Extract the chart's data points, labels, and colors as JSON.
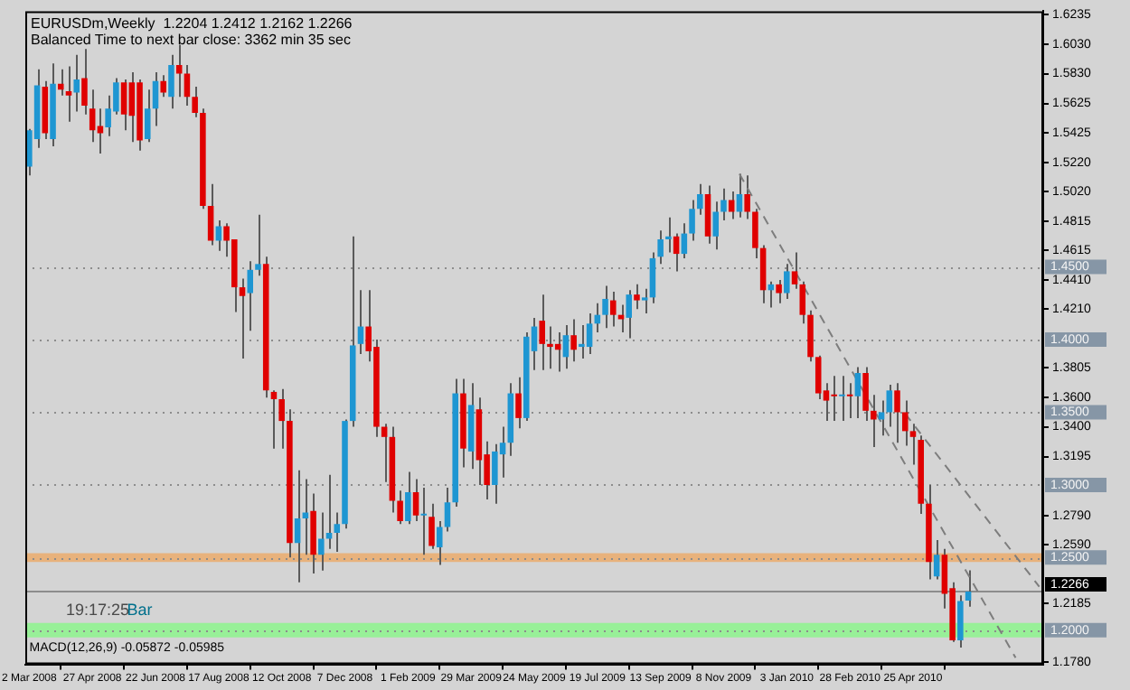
{
  "chart_data": {
    "type": "candlestick",
    "title": "EURUSDm,Weekly  1.2204 1.2412 1.2162 1.2266",
    "subtitle": "Balanced Time to next bar close: 3362 min 35 sec",
    "annotations": [
      "19:17:25",
      "Bar",
      "MACD(12,26,9) -0.05872 -0.05985"
    ],
    "categories": [
      "2 Mar 2008",
      null,
      null,
      null,
      null,
      null,
      null,
      null,
      "27 Apr 2008",
      null,
      null,
      null,
      null,
      null,
      null,
      null,
      "22 Jun 2008",
      null,
      null,
      null,
      null,
      null,
      null,
      null,
      "17 Aug 2008",
      null,
      null,
      null,
      null,
      null,
      null,
      null,
      "12 Oct 2008",
      null,
      null,
      null,
      null,
      null,
      null,
      null,
      "7 Dec 2008",
      null,
      null,
      null,
      null,
      null,
      null,
      null,
      "1 Feb 2009",
      null,
      null,
      null,
      null,
      null,
      null,
      null,
      "29 Mar 2009",
      null,
      null,
      null,
      null,
      null,
      null,
      null,
      "24 May 2009",
      null,
      null,
      null,
      null,
      null,
      null,
      null,
      "19 Jul 2009",
      null,
      null,
      null,
      null,
      null,
      null,
      null,
      "13 Sep 2009",
      null,
      null,
      null,
      null,
      null,
      null,
      null,
      "8 Nov 2009",
      null,
      null,
      null,
      null,
      null,
      null,
      null,
      "3 Jan 2010",
      null,
      null,
      null,
      null,
      null,
      null,
      null,
      "28 Feb 2010",
      null,
      null,
      null,
      null,
      null,
      null,
      null,
      "25 Apr 2010",
      null,
      null,
      null,
      null,
      null,
      null,
      null,
      null,
      null,
      null,
      null,
      null,
      null,
      null,
      null,
      null
    ],
    "ohlc": [
      [
        1.519,
        1.545,
        1.513,
        1.544
      ],
      [
        1.538,
        1.586,
        1.532,
        1.575
      ],
      [
        1.574,
        1.578,
        1.538,
        1.542
      ],
      [
        1.538,
        1.59,
        1.533,
        1.576
      ],
      [
        1.576,
        1.586,
        1.568,
        1.572
      ],
      [
        1.571,
        1.588,
        1.55,
        1.568
      ],
      [
        1.57,
        1.596,
        1.557,
        1.579
      ],
      [
        1.58,
        1.6,
        1.555,
        1.561
      ],
      [
        1.559,
        1.572,
        1.536,
        1.544
      ],
      [
        1.547,
        1.559,
        1.528,
        1.542
      ],
      [
        1.546,
        1.568,
        1.54,
        1.559
      ],
      [
        1.557,
        1.58,
        1.555,
        1.577
      ],
      [
        1.577,
        1.579,
        1.544,
        1.555
      ],
      [
        1.577,
        1.584,
        1.536,
        1.554
      ],
      [
        1.577,
        1.579,
        1.53,
        1.537
      ],
      [
        1.538,
        1.572,
        1.536,
        1.559
      ],
      [
        1.559,
        1.584,
        1.547,
        1.578
      ],
      [
        1.578,
        1.582,
        1.567,
        1.57
      ],
      [
        1.567,
        1.596,
        1.559,
        1.589
      ],
      [
        1.589,
        1.603,
        1.567,
        1.583
      ],
      [
        1.583,
        1.589,
        1.561,
        1.567
      ],
      [
        1.567,
        1.574,
        1.553,
        1.556
      ],
      [
        1.556,
        1.559,
        1.49,
        1.492
      ],
      [
        1.492,
        1.507,
        1.465,
        1.468
      ],
      [
        1.468,
        1.482,
        1.461,
        1.478
      ],
      [
        1.478,
        1.48,
        1.457,
        1.468
      ],
      [
        1.469,
        1.469,
        1.419,
        1.436
      ],
      [
        1.436,
        1.442,
        1.387,
        1.43
      ],
      [
        1.432,
        1.454,
        1.406,
        1.448
      ],
      [
        1.448,
        1.486,
        1.444,
        1.452
      ],
      [
        1.452,
        1.457,
        1.36,
        1.365
      ],
      [
        1.364,
        1.365,
        1.325,
        1.359
      ],
      [
        1.359,
        1.366,
        1.325,
        1.344
      ],
      [
        1.344,
        1.352,
        1.25,
        1.26
      ],
      [
        1.26,
        1.31,
        1.233,
        1.277
      ],
      [
        1.277,
        1.304,
        1.252,
        1.281
      ],
      [
        1.282,
        1.294,
        1.239,
        1.252
      ],
      [
        1.252,
        1.281,
        1.241,
        1.263
      ],
      [
        1.263,
        1.307,
        1.256,
        1.267
      ],
      [
        1.267,
        1.281,
        1.254,
        1.273
      ],
      [
        1.273,
        1.345,
        1.27,
        1.344
      ],
      [
        1.344,
        1.471,
        1.34,
        1.396
      ],
      [
        1.397,
        1.434,
        1.39,
        1.409
      ],
      [
        1.409,
        1.434,
        1.385,
        1.392
      ],
      [
        1.395,
        1.4,
        1.333,
        1.34
      ],
      [
        1.34,
        1.342,
        1.302,
        1.333
      ],
      [
        1.333,
        1.34,
        1.281,
        1.289
      ],
      [
        1.289,
        1.296,
        1.273,
        1.275
      ],
      [
        1.275,
        1.309,
        1.273,
        1.295
      ],
      [
        1.295,
        1.304,
        1.275,
        1.279
      ],
      [
        1.279,
        1.298,
        1.252,
        1.28
      ],
      [
        1.278,
        1.287,
        1.256,
        1.258
      ],
      [
        1.257,
        1.275,
        1.245,
        1.271
      ],
      [
        1.271,
        1.298,
        1.268,
        1.288
      ],
      [
        1.288,
        1.373,
        1.285,
        1.363
      ],
      [
        1.363,
        1.373,
        1.312,
        1.325
      ],
      [
        1.323,
        1.37,
        1.311,
        1.355
      ],
      [
        1.352,
        1.36,
        1.3,
        1.317
      ],
      [
        1.321,
        1.33,
        1.29,
        1.3
      ],
      [
        1.3,
        1.328,
        1.287,
        1.323
      ],
      [
        1.321,
        1.34,
        1.305,
        1.329
      ],
      [
        1.329,
        1.37,
        1.32,
        1.363
      ],
      [
        1.363,
        1.374,
        1.339,
        1.346
      ],
      [
        1.346,
        1.405,
        1.344,
        1.402
      ],
      [
        1.392,
        1.415,
        1.379,
        1.409
      ],
      [
        1.413,
        1.431,
        1.379,
        1.397
      ],
      [
        1.397,
        1.409,
        1.38,
        1.395
      ],
      [
        1.397,
        1.405,
        1.378,
        1.393
      ],
      [
        1.388,
        1.41,
        1.38,
        1.403
      ],
      [
        1.403,
        1.414,
        1.385,
        1.393
      ],
      [
        1.395,
        1.41,
        1.387,
        1.397
      ],
      [
        1.395,
        1.418,
        1.39,
        1.411
      ],
      [
        1.411,
        1.425,
        1.405,
        1.417
      ],
      [
        1.417,
        1.437,
        1.408,
        1.428
      ],
      [
        1.427,
        1.433,
        1.409,
        1.417
      ],
      [
        1.417,
        1.424,
        1.405,
        1.414
      ],
      [
        1.415,
        1.434,
        1.401,
        1.431
      ],
      [
        1.431,
        1.438,
        1.421,
        1.427
      ],
      [
        1.427,
        1.435,
        1.418,
        1.429
      ],
      [
        1.429,
        1.46,
        1.425,
        1.456
      ],
      [
        1.457,
        1.475,
        1.452,
        1.469
      ],
      [
        1.469,
        1.484,
        1.46,
        1.471
      ],
      [
        1.471,
        1.473,
        1.447,
        1.459
      ],
      [
        1.459,
        1.48,
        1.456,
        1.473
      ],
      [
        1.473,
        1.496,
        1.468,
        1.49
      ],
      [
        1.49,
        1.507,
        1.486,
        1.5
      ],
      [
        1.5,
        1.506,
        1.466,
        1.471
      ],
      [
        1.471,
        1.495,
        1.462,
        1.488
      ],
      [
        1.488,
        1.504,
        1.482,
        1.496
      ],
      [
        1.496,
        1.502,
        1.483,
        1.488
      ],
      [
        1.488,
        1.514,
        1.484,
        1.5
      ],
      [
        1.5,
        1.513,
        1.483,
        1.488
      ],
      [
        1.488,
        1.49,
        1.456,
        1.463
      ],
      [
        1.463,
        1.465,
        1.425,
        1.434
      ],
      [
        1.434,
        1.44,
        1.422,
        1.438
      ],
      [
        1.438,
        1.441,
        1.425,
        1.432
      ],
      [
        1.432,
        1.452,
        1.428,
        1.447
      ],
      [
        1.447,
        1.46,
        1.435,
        1.438
      ],
      [
        1.438,
        1.44,
        1.411,
        1.417
      ],
      [
        1.417,
        1.42,
        1.385,
        1.388
      ],
      [
        1.388,
        1.389,
        1.359,
        1.363
      ],
      [
        1.365,
        1.37,
        1.344,
        1.358
      ],
      [
        1.362,
        1.375,
        1.344,
        1.361
      ],
      [
        1.361,
        1.375,
        1.344,
        1.362
      ],
      [
        1.362,
        1.37,
        1.346,
        1.361
      ],
      [
        1.361,
        1.381,
        1.346,
        1.377
      ],
      [
        1.377,
        1.381,
        1.344,
        1.351
      ],
      [
        1.351,
        1.362,
        1.326,
        1.345
      ],
      [
        1.345,
        1.358,
        1.334,
        1.35
      ],
      [
        1.35,
        1.369,
        1.34,
        1.365
      ],
      [
        1.365,
        1.37,
        1.329,
        1.35
      ],
      [
        1.35,
        1.358,
        1.327,
        1.337
      ],
      [
        1.337,
        1.342,
        1.314,
        1.333
      ],
      [
        1.331,
        1.334,
        1.28,
        1.287
      ],
      [
        1.287,
        1.3,
        1.235,
        1.247
      ],
      [
        1.237,
        1.262,
        1.235,
        1.252
      ],
      [
        1.252,
        1.256,
        1.215,
        1.225
      ],
      [
        1.229,
        1.233,
        1.192,
        1.193
      ],
      [
        1.193,
        1.224,
        1.188,
        1.22
      ],
      [
        1.2204,
        1.2412,
        1.2162,
        1.2266
      ],
      null,
      null,
      null,
      null,
      null,
      null,
      null,
      null,
      null
    ],
    "colors": [
      "#1e96d2",
      "#1e96d2",
      "#e00000",
      "#1e96d2",
      "#e00000",
      "#e00000",
      "#1e96d2",
      "#e00000",
      "#e00000",
      "#e00000",
      "#1e96d2",
      "#1e96d2",
      "#e00000",
      "#e00000",
      "#e00000",
      "#1e96d2",
      "#1e96d2",
      "#e00000",
      "#1e96d2",
      "#e00000",
      "#e00000",
      "#e00000",
      "#e00000",
      "#e00000",
      "#1e96d2",
      "#e00000",
      "#e00000",
      "#e00000",
      "#1e96d2",
      "#1e96d2",
      "#e00000",
      "#e00000",
      "#e00000",
      "#e00000",
      "#1e96d2",
      "#1e96d2",
      "#e00000",
      "#1e96d2",
      "#1e96d2",
      "#1e96d2",
      "#1e96d2",
      "#1e96d2",
      "#1e96d2",
      "#e00000",
      "#e00000",
      "#e00000",
      "#e00000",
      "#e00000",
      "#1e96d2",
      "#e00000",
      "#1e96d2",
      "#e00000",
      "#1e96d2",
      "#1e96d2",
      "#1e96d2",
      "#e00000",
      "#1e96d2",
      "#e00000",
      "#e00000",
      "#1e96d2",
      "#1e96d2",
      "#1e96d2",
      "#e00000",
      "#1e96d2",
      "#1e96d2",
      "#e00000",
      "#e00000",
      "#e00000",
      "#1e96d2",
      "#e00000",
      "#1e96d2",
      "#1e96d2",
      "#1e96d2",
      "#1e96d2",
      "#e00000",
      "#e00000",
      "#1e96d2",
      "#e00000",
      "#1e96d2",
      "#1e96d2",
      "#1e96d2",
      "#1e96d2",
      "#e00000",
      "#1e96d2",
      "#1e96d2",
      "#1e96d2",
      "#e00000",
      "#1e96d2",
      "#1e96d2",
      "#e00000",
      "#1e96d2",
      "#e00000",
      "#e00000",
      "#e00000",
      "#1e96d2",
      "#e00000",
      "#1e96d2",
      "#e00000",
      "#e00000",
      "#e00000",
      "#e00000",
      "#e00000",
      "#e00000",
      "#1e96d2",
      "#e00000",
      "#1e96d2",
      "#e00000",
      "#e00000",
      "#1e96d2",
      "#1e96d2",
      "#e00000",
      "#e00000",
      "#e00000",
      "#e00000",
      "#e00000",
      "#1e96d2",
      "#e00000",
      "#e00000",
      "#1e96d2",
      "#1e96d2",
      null,
      null,
      null,
      null,
      null,
      null,
      null,
      null,
      null
    ],
    "series": [
      {
        "type": "line",
        "color": "#7d7d7d",
        "line_style": "dashed",
        "values": [
          null,
          null,
          null,
          null,
          null,
          null,
          null,
          null,
          null,
          null,
          null,
          null,
          null,
          null,
          null,
          null,
          null,
          null,
          null,
          null,
          null,
          null,
          null,
          null,
          null,
          null,
          null,
          null,
          null,
          null,
          null,
          null,
          null,
          null,
          null,
          null,
          null,
          null,
          null,
          null,
          null,
          null,
          null,
          null,
          null,
          null,
          null,
          null,
          null,
          null,
          null,
          null,
          null,
          null,
          null,
          null,
          null,
          null,
          null,
          null,
          null,
          null,
          null,
          null,
          null,
          null,
          null,
          null,
          null,
          null,
          null,
          null,
          null,
          null,
          null,
          null,
          null,
          null,
          null,
          null,
          null,
          null,
          null,
          null,
          null,
          null,
          null,
          null,
          null,
          null,
          1.514,
          null,
          null,
          null,
          null,
          null,
          null,
          null,
          null,
          null,
          null,
          null,
          null,
          null,
          null,
          null,
          null,
          null,
          null,
          null,
          null,
          null,
          null,
          null,
          null,
          null,
          null,
          null,
          null,
          null,
          null,
          null,
          null,
          null,
          null,
          1.181,
          null,
          null,
          null
        ]
      },
      {
        "type": "line",
        "color": "#7d7d7d",
        "line_style": "dashed",
        "values": [
          null,
          null,
          null,
          null,
          null,
          null,
          null,
          null,
          null,
          null,
          null,
          null,
          null,
          null,
          null,
          null,
          null,
          null,
          null,
          null,
          null,
          null,
          null,
          null,
          null,
          null,
          null,
          null,
          null,
          null,
          null,
          null,
          null,
          null,
          null,
          null,
          null,
          null,
          null,
          null,
          null,
          null,
          null,
          null,
          null,
          null,
          null,
          null,
          null,
          null,
          null,
          null,
          null,
          null,
          null,
          null,
          null,
          null,
          null,
          null,
          null,
          null,
          null,
          null,
          null,
          null,
          null,
          null,
          null,
          null,
          null,
          null,
          null,
          null,
          null,
          null,
          null,
          null,
          null,
          null,
          null,
          null,
          null,
          null,
          null,
          null,
          null,
          null,
          null,
          null,
          null,
          null,
          null,
          null,
          null,
          null,
          null,
          null,
          null,
          null,
          null,
          null,
          null,
          null,
          null,
          null,
          null,
          null,
          null,
          null,
          null,
          1.349,
          null,
          null,
          null,
          null,
          null,
          null,
          null,
          null,
          null,
          null,
          null,
          null,
          null,
          null,
          null,
          null,
          1.23
        ]
      }
    ],
    "ylim": [
      1.1765,
      1.626
    ],
    "yticks": [
      1.6235,
      {
        "value": 1.603,
        "label": "1.6030"
      },
      {
        "value": 1.583,
        "label": "1.5830"
      },
      1.5625,
      1.5425,
      {
        "value": 1.522,
        "label": "1.5220"
      },
      {
        "value": 1.502,
        "label": "1.5020"
      },
      1.4815,
      1.4615,
      {
        "value": 1.441,
        "label": "1.4410"
      },
      {
        "value": 1.421,
        "label": "1.4210"
      },
      1.3805,
      {
        "value": 1.36,
        "label": "1.3600"
      },
      {
        "value": 1.34,
        "label": "1.3400"
      },
      1.3195,
      {
        "value": 1.279,
        "label": "1.2790"
      },
      {
        "value": 1.259,
        "label": "1.2590"
      },
      1.2185,
      {
        "value": 1.178,
        "label": "1.1780"
      }
    ],
    "bands": [
      {
        "axis": "y",
        "from": 1.247,
        "to": 1.253,
        "color": "#e8b27c"
      },
      {
        "axis": "y",
        "from": 1.195,
        "to": 1.205,
        "color": "#98f098"
      }
    ],
    "ref_lines": [
      {
        "axis": "y",
        "value": 1.45,
        "label": "1.4500",
        "color": "#8c8c8c",
        "line_style": "dotted"
      },
      {
        "axis": "y",
        "value": 1.4,
        "label": "1.4000",
        "color": "#8c8c8c",
        "line_style": "dotted"
      },
      {
        "axis": "y",
        "value": 1.35,
        "label": "1.3500",
        "color": "#8c8c8c",
        "line_style": "dotted"
      },
      {
        "axis": "y",
        "value": 1.3,
        "label": "1.3000",
        "color": "#8c8c8c",
        "line_style": "dotted"
      },
      {
        "axis": "y",
        "value": 1.25,
        "label": "1.2500",
        "color": "#8c8c8c",
        "line_style": "dotted"
      },
      {
        "axis": "y",
        "value": 1.2266,
        "label": "1.2266",
        "color": "#8c8c8c",
        "line_style": "solid"
      },
      {
        "axis": "y",
        "value": 1.2,
        "label": "1.2000",
        "color": "#8c8c8c",
        "line_style": "dotted"
      }
    ]
  }
}
